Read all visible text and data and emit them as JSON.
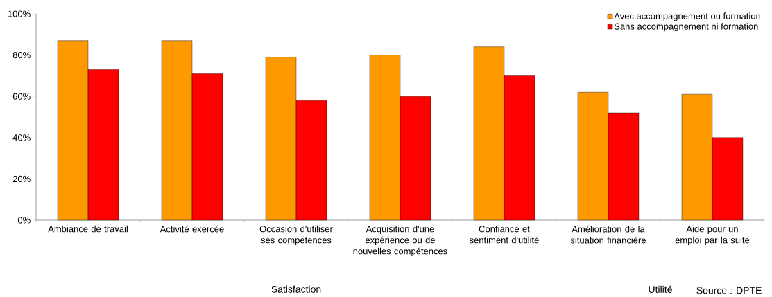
{
  "chart_data": {
    "type": "bar",
    "categories": [
      "Ambiance de travail",
      "Activité exercée",
      "Occasion d'utiliser ses compétences",
      "Acquisition d'une expérience ou de nouvelles compétences",
      "Confiance et sentiment d'utilité",
      "Amélioration de la situation financière",
      "Aide pour un emploi par la suite"
    ],
    "series": [
      {
        "name": "Avec accompagnement ou formation",
        "color": "#ff9900",
        "values": [
          87,
          87,
          79,
          80,
          84,
          62,
          61
        ]
      },
      {
        "name": "Sans accompagnement ni formation",
        "color": "#ff0000",
        "values": [
          73,
          71,
          58,
          60,
          70,
          52,
          40
        ]
      }
    ],
    "ylim": [
      0,
      100
    ],
    "yticks": [
      {
        "value": 0,
        "label": "0%"
      },
      {
        "value": 20,
        "label": "20%"
      },
      {
        "value": 40,
        "label": "40%"
      },
      {
        "value": 60,
        "label": "60%"
      },
      {
        "value": 80,
        "label": "80%"
      },
      {
        "value": 100,
        "label": "100%"
      }
    ],
    "legend": "top right",
    "annotations": [
      "Satisfaction",
      "Utilité",
      "Source : DPTE"
    ]
  }
}
